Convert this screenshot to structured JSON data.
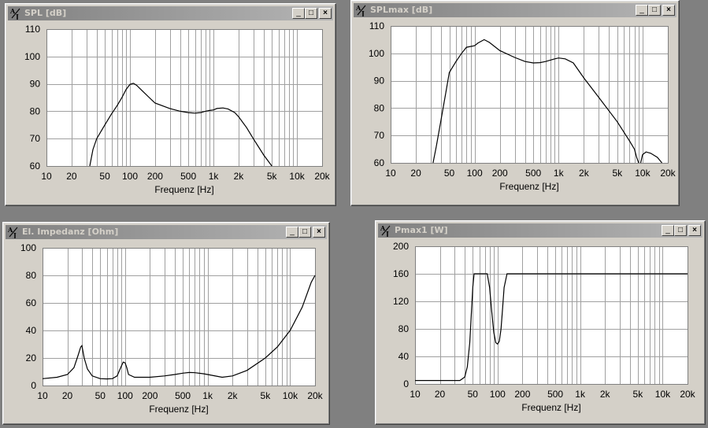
{
  "windows": [
    {
      "title": "SPL [dB]",
      "chart_data": {
        "type": "line",
        "xscale": "log",
        "xlim": [
          10,
          20000
        ],
        "ylim": [
          60,
          110
        ],
        "xlabel": "Frequenz [Hz]",
        "ylabel": "",
        "grid": true,
        "x_ticks": [
          "10",
          "20",
          "50",
          "100",
          "200",
          "500",
          "1k",
          "2k",
          "5k",
          "10k",
          "20k"
        ],
        "y_ticks": [
          "60",
          "70",
          "80",
          "90",
          "100",
          "110"
        ],
        "series": [
          {
            "points": [
              [
                33,
                60
              ],
              [
                36,
                66
              ],
              [
                40,
                70
              ],
              [
                50,
                75
              ],
              [
                60,
                79
              ],
              [
                70,
                82
              ],
              [
                80,
                85
              ],
              [
                90,
                88
              ],
              [
                100,
                89.8
              ],
              [
                110,
                90.2
              ],
              [
                120,
                89.5
              ],
              [
                140,
                87.5
              ],
              [
                170,
                85
              ],
              [
                200,
                83
              ],
              [
                300,
                81
              ],
              [
                400,
                80
              ],
              [
                500,
                79.5
              ],
              [
                600,
                79.3
              ],
              [
                700,
                79.5
              ],
              [
                800,
                80
              ],
              [
                900,
                80.3
              ],
              [
                1000,
                80.5
              ],
              [
                1100,
                81
              ],
              [
                1300,
                81.2
              ],
              [
                1500,
                80.8
              ],
              [
                1800,
                79.5
              ],
              [
                2000,
                78
              ],
              [
                2500,
                74
              ],
              [
                3000,
                70
              ],
              [
                4000,
                64
              ],
              [
                5000,
                60
              ]
            ]
          }
        ]
      }
    },
    {
      "title": "SPLmax [dB]",
      "chart_data": {
        "type": "line",
        "xscale": "log",
        "xlim": [
          10,
          20000
        ],
        "ylim": [
          60,
          110
        ],
        "xlabel": "Frequenz [Hz]",
        "ylabel": "",
        "grid": true,
        "x_ticks": [
          "10",
          "20",
          "50",
          "100",
          "200",
          "500",
          "1k",
          "2k",
          "5k",
          "10k",
          "20k"
        ],
        "y_ticks": [
          "60",
          "70",
          "80",
          "90",
          "100",
          "110"
        ],
        "series": [
          {
            "points": [
              [
                32,
                60
              ],
              [
                35,
                66
              ],
              [
                40,
                76
              ],
              [
                45,
                85
              ],
              [
                50,
                93
              ],
              [
                60,
                97
              ],
              [
                70,
                100
              ],
              [
                80,
                102.2
              ],
              [
                100,
                102.8
              ],
              [
                110,
                103.8
              ],
              [
                130,
                105
              ],
              [
                150,
                104
              ],
              [
                200,
                101
              ],
              [
                300,
                98.5
              ],
              [
                400,
                97
              ],
              [
                500,
                96.5
              ],
              [
                600,
                96.6
              ],
              [
                700,
                97
              ],
              [
                900,
                98
              ],
              [
                1000,
                98.3
              ],
              [
                1200,
                98
              ],
              [
                1500,
                96.5
              ],
              [
                2000,
                91
              ],
              [
                3000,
                84
              ],
              [
                5000,
                75
              ],
              [
                7000,
                68
              ],
              [
                8000,
                65
              ],
              [
                8500,
                62
              ],
              [
                9000,
                60
              ]
            ]
          }
        ]
      }
    },
    {
      "title": "El. Impedanz [Ohm]",
      "chart_data": {
        "type": "line",
        "xscale": "log",
        "xlim": [
          10,
          20000
        ],
        "ylim": [
          0,
          100
        ],
        "xlabel": "Frequenz [Hz]",
        "ylabel": "",
        "grid": true,
        "x_ticks": [
          "10",
          "20",
          "50",
          "100",
          "200",
          "500",
          "1k",
          "2k",
          "5k",
          "10k",
          "20k"
        ],
        "y_ticks": [
          "0",
          "20",
          "40",
          "60",
          "80",
          "100"
        ],
        "series": [
          {
            "points": [
              [
                10,
                5
              ],
              [
                15,
                6
              ],
              [
                20,
                8
              ],
              [
                24,
                13
              ],
              [
                27,
                22
              ],
              [
                29,
                28
              ],
              [
                30,
                29
              ],
              [
                32,
                20
              ],
              [
                35,
                12
              ],
              [
                40,
                7
              ],
              [
                50,
                5
              ],
              [
                60,
                4.8
              ],
              [
                70,
                5
              ],
              [
                80,
                7
              ],
              [
                90,
                14
              ],
              [
                95,
                17
              ],
              [
                100,
                16.5
              ],
              [
                105,
                13
              ],
              [
                110,
                8
              ],
              [
                130,
                6
              ],
              [
                200,
                6
              ],
              [
                300,
                7
              ],
              [
                400,
                8
              ],
              [
                500,
                9
              ],
              [
                600,
                9.5
              ],
              [
                700,
                9.3
              ],
              [
                900,
                8.5
              ],
              [
                1000,
                8
              ],
              [
                1500,
                6
              ],
              [
                2000,
                7
              ],
              [
                3000,
                11
              ],
              [
                5000,
                20
              ],
              [
                7000,
                28
              ],
              [
                10000,
                40
              ],
              [
                14000,
                57
              ],
              [
                18000,
                75
              ],
              [
                20000,
                80
              ]
            ]
          }
        ]
      }
    },
    {
      "title": "Pmax1 [W]",
      "chart_data": {
        "type": "line",
        "xscale": "log",
        "xlim": [
          10,
          20000
        ],
        "ylim": [
          0,
          200
        ],
        "xlabel": "Frequenz [Hz]",
        "ylabel": "",
        "grid": true,
        "x_ticks": [
          "10",
          "20",
          "50",
          "100",
          "200",
          "500",
          "1k",
          "2k",
          "5k",
          "10k",
          "20k"
        ],
        "y_ticks": [
          "0",
          "40",
          "80",
          "120",
          "160",
          "200"
        ],
        "series": [
          {
            "points": [
              [
                10,
                5
              ],
              [
                30,
                5
              ],
              [
                35,
                5
              ],
              [
                40,
                10
              ],
              [
                43,
                25
              ],
              [
                46,
                60
              ],
              [
                48,
                100
              ],
              [
                50,
                140
              ],
              [
                52,
                160
              ],
              [
                75,
                160
              ],
              [
                80,
                140
              ],
              [
                85,
                105
              ],
              [
                90,
                75
              ],
              [
                95,
                60
              ],
              [
                100,
                58
              ],
              [
                105,
                62
              ],
              [
                110,
                80
              ],
              [
                115,
                110
              ],
              [
                120,
                140
              ],
              [
                130,
                160
              ],
              [
                20000,
                160
              ]
            ]
          }
        ]
      }
    }
  ]
}
